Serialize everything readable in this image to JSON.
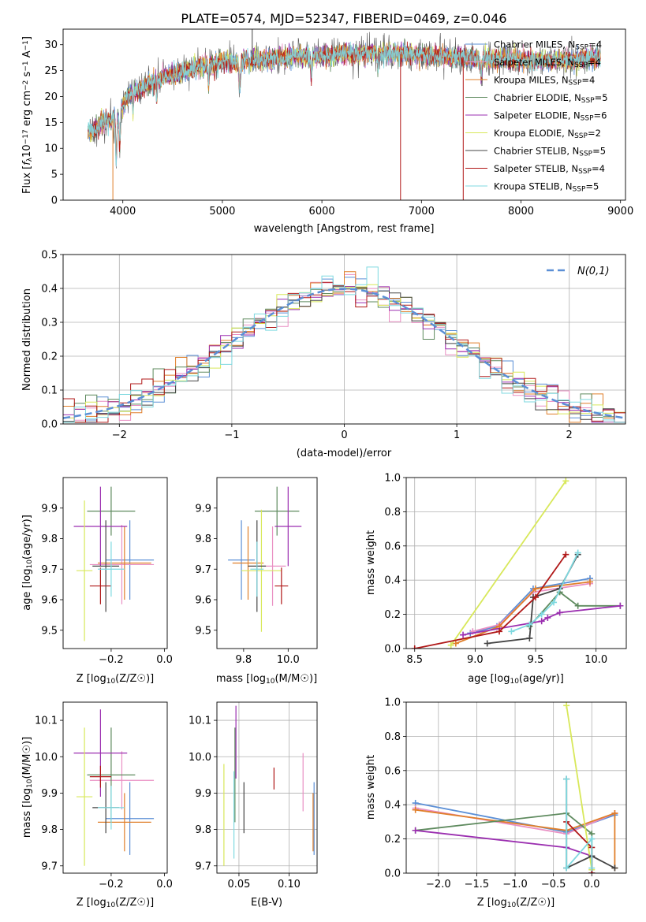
{
  "figure": {
    "title": "PLATE=0574, MJD=52347, FIBERID=0469, z=0.046"
  },
  "colors": {
    "palette": [
      "#5b8fd6",
      "#e98fc3",
      "#e07f2a",
      "#5e8a5e",
      "#9b2fb0",
      "#d8e85a",
      "#444444",
      "#b01818",
      "#7fd9e0"
    ],
    "normal": "#5b8fd6"
  },
  "chart_data": [
    {
      "id": "spectrum",
      "type": "line",
      "xlabel": "wavelength [Angstrom, rest frame]",
      "ylabel": "Flux [f_λ10^-17 erg cm^-2 s^-1 A^-1]",
      "xlim": [
        3400,
        9050
      ],
      "ylim": [
        0,
        33
      ],
      "xticks": [
        4000,
        5000,
        6000,
        7000,
        8000,
        9000
      ],
      "yticks": [
        0,
        5,
        10,
        15,
        20,
        25,
        30
      ],
      "grid": false,
      "legend_position": "top-right",
      "legend": [
        {
          "label": "Chabrier MILES, N_SSP=4"
        },
        {
          "label": "Salpeter MILES, N_SSP=4"
        },
        {
          "label": "Kroupa MILES, N_SSP=4"
        },
        {
          "label": "Chabrier ELODIE, N_SSP=5"
        },
        {
          "label": "Salpeter ELODIE, N_SSP=6"
        },
        {
          "label": "Kroupa ELODIE, N_SSP=2"
        },
        {
          "label": "Chabrier STELIB, N_SSP=5"
        },
        {
          "label": "Salpeter STELIB, N_SSP=4"
        },
        {
          "label": "Kroupa STELIB, N_SSP=5"
        }
      ],
      "data_range": [
        3650,
        8800
      ],
      "continuum": [
        [
          3650,
          13
        ],
        [
          3800,
          15
        ],
        [
          3950,
          16
        ],
        [
          4050,
          20
        ],
        [
          4300,
          23
        ],
        [
          4600,
          25
        ],
        [
          5000,
          26.5
        ],
        [
          5500,
          27.5
        ],
        [
          6000,
          28
        ],
        [
          6500,
          28.5
        ],
        [
          7000,
          28
        ],
        [
          7500,
          27.5
        ],
        [
          8000,
          27
        ],
        [
          8500,
          27
        ],
        [
          8800,
          27.5
        ]
      ]
    },
    {
      "id": "residuals",
      "type": "histogram",
      "xlabel": "(data-model)/error",
      "ylabel": "Normed distribution",
      "xlim": [
        -2.5,
        2.5
      ],
      "ylim": [
        0,
        0.5
      ],
      "xticks": [
        -2,
        -1,
        0,
        1,
        2
      ],
      "yticks": [
        0.0,
        0.1,
        0.2,
        0.3,
        0.4,
        0.5
      ],
      "grid": true,
      "legend_position": "top-right",
      "normal_label": "N(0,1)",
      "bin_width": 0.1,
      "n_series": 9
    },
    {
      "id": "age-vs-Z",
      "type": "errorbar",
      "xlabel": "Z [log10(Z/Z☉)]",
      "ylabel": "age [log10(age/yr)]",
      "xlim": [
        -0.38,
        0.01
      ],
      "ylim": [
        9.44,
        10.0
      ],
      "xticks": [
        -0.2,
        0.0
      ],
      "yticks": [
        9.5,
        9.6,
        9.7,
        9.8,
        9.9
      ],
      "points": [
        {
          "x": -0.13,
          "xerr": 0.09,
          "y": 9.73,
          "yerr": 0.13,
          "c": 0
        },
        {
          "x": -0.16,
          "xerr": 0.12,
          "y": 9.715,
          "yerr": 0.13,
          "c": 1
        },
        {
          "x": -0.15,
          "xerr": 0.1,
          "y": 9.72,
          "yerr": 0.12,
          "c": 2
        },
        {
          "x": -0.2,
          "xerr": 0.09,
          "y": 9.89,
          "yerr": 0.08,
          "c": 3
        },
        {
          "x": -0.24,
          "xerr": 0.1,
          "y": 9.84,
          "yerr": 0.13,
          "c": 4
        },
        {
          "x": -0.3,
          "xerr": 0.03,
          "y": 9.695,
          "yerr": 0.23,
          "c": 5
        },
        {
          "x": -0.22,
          "xerr": 0.05,
          "y": 9.71,
          "yerr": 0.15,
          "c": 6
        },
        {
          "x": -0.24,
          "xerr": 0.04,
          "y": 9.645,
          "yerr": 0.06,
          "c": 7
        },
        {
          "x": -0.2,
          "xerr": 0.05,
          "y": 9.7,
          "yerr": 0.09,
          "c": 8
        }
      ]
    },
    {
      "id": "age-vs-mass",
      "type": "errorbar",
      "xlabel": "mass [log10(M/M☉)]",
      "xlim": [
        9.68,
        10.13
      ],
      "ylim": [
        9.44,
        10.0
      ],
      "xticks": [
        9.8,
        10.0
      ],
      "yticks": [
        9.5,
        9.6,
        9.7,
        9.8,
        9.9
      ],
      "points": [
        {
          "x": 9.79,
          "xerr": 0.06,
          "y": 9.73,
          "yerr": 0.13,
          "c": 0
        },
        {
          "x": 9.93,
          "xerr": 0.06,
          "y": 9.71,
          "yerr": 0.13,
          "c": 1
        },
        {
          "x": 9.82,
          "xerr": 0.07,
          "y": 9.72,
          "yerr": 0.12,
          "c": 2
        },
        {
          "x": 9.95,
          "xerr": 0.1,
          "y": 9.89,
          "yerr": 0.08,
          "c": 3
        },
        {
          "x": 10.0,
          "xerr": 0.06,
          "y": 9.84,
          "yerr": 0.13,
          "c": 4
        },
        {
          "x": 9.88,
          "xerr": 0.09,
          "y": 9.695,
          "yerr": 0.2,
          "c": 5
        },
        {
          "x": 9.86,
          "xerr": 0.04,
          "y": 9.71,
          "yerr": 0.15,
          "c": 6
        },
        {
          "x": 9.97,
          "xerr": 0.03,
          "y": 9.645,
          "yerr": 0.06,
          "c": 7
        },
        {
          "x": 9.86,
          "xerr": 0.03,
          "y": 9.7,
          "yerr": 0.09,
          "c": 8
        }
      ]
    },
    {
      "id": "weight-vs-age",
      "type": "line",
      "xlabel": "age [log10(age/yr)]",
      "ylabel": "mass weight",
      "xlim": [
        8.43,
        10.25
      ],
      "ylim": [
        0,
        1.0
      ],
      "xticks": [
        8.5,
        9.0,
        9.5,
        10.0
      ],
      "yticks": [
        0.0,
        0.2,
        0.4,
        0.6,
        0.8,
        1.0
      ],
      "grid": true,
      "series": [
        {
          "c": 0,
          "x": [
            8.96,
            9.18,
            9.48,
            9.95
          ],
          "y": [
            0.09,
            0.13,
            0.35,
            0.41
          ]
        },
        {
          "c": 1,
          "x": [
            8.98,
            9.2,
            9.48,
            9.95
          ],
          "y": [
            0.1,
            0.14,
            0.33,
            0.38
          ]
        },
        {
          "c": 2,
          "x": [
            8.84,
            9.2,
            9.5,
            9.95
          ],
          "y": [
            0.03,
            0.13,
            0.35,
            0.39
          ]
        },
        {
          "c": 3,
          "x": [
            9.45,
            9.7,
            9.85,
            10.2
          ],
          "y": [
            0.13,
            0.33,
            0.25,
            0.25
          ]
        },
        {
          "c": 4,
          "x": [
            8.9,
            9.55,
            9.6,
            9.7,
            10.2
          ],
          "y": [
            0.08,
            0.16,
            0.18,
            0.21,
            0.25
          ]
        },
        {
          "c": 5,
          "x": [
            8.8,
            9.75
          ],
          "y": [
            0.02,
            0.98
          ]
        },
        {
          "c": 6,
          "x": [
            9.1,
            9.45,
            9.48,
            9.7,
            9.85
          ],
          "y": [
            0.03,
            0.06,
            0.3,
            0.35,
            0.55
          ]
        },
        {
          "c": 7,
          "x": [
            8.5,
            9.2,
            9.5,
            9.75
          ],
          "y": [
            0.0,
            0.1,
            0.3,
            0.55
          ]
        },
        {
          "c": 8,
          "x": [
            9.3,
            9.45,
            9.55,
            9.65,
            9.85
          ],
          "y": [
            0.1,
            0.14,
            0.2,
            0.27,
            0.56
          ]
        }
      ]
    },
    {
      "id": "mass-vs-Z",
      "type": "errorbar",
      "xlabel": "Z [log10(Z/Z☉)]",
      "ylabel": "mass [log10(M/M☉)]",
      "xlim": [
        -0.38,
        0.01
      ],
      "ylim": [
        9.68,
        10.15
      ],
      "xticks": [
        -0.2,
        0.0
      ],
      "yticks": [
        9.7,
        9.8,
        9.9,
        10.0,
        10.1
      ],
      "points": [
        {
          "x": -0.13,
          "xerr": 0.09,
          "y": 9.83,
          "yerr": 0.1,
          "c": 0
        },
        {
          "x": -0.16,
          "xerr": 0.12,
          "y": 9.935,
          "yerr": 0.08,
          "c": 1
        },
        {
          "x": -0.15,
          "xerr": 0.1,
          "y": 9.82,
          "yerr": 0.08,
          "c": 2
        },
        {
          "x": -0.2,
          "xerr": 0.09,
          "y": 9.95,
          "yerr": 0.13,
          "c": 3
        },
        {
          "x": -0.24,
          "xerr": 0.1,
          "y": 10.01,
          "yerr": 0.12,
          "c": 4
        },
        {
          "x": -0.3,
          "xerr": 0.03,
          "y": 9.89,
          "yerr": 0.19,
          "c": 5
        },
        {
          "x": -0.22,
          "xerr": 0.05,
          "y": 9.86,
          "yerr": 0.07,
          "c": 6
        },
        {
          "x": -0.24,
          "xerr": 0.04,
          "y": 9.945,
          "yerr": 0.03,
          "c": 7
        },
        {
          "x": -0.2,
          "xerr": 0.05,
          "y": 9.86,
          "yerr": 0.06,
          "c": 8
        }
      ]
    },
    {
      "id": "mass-vs-ebv",
      "type": "errorbar",
      "xlabel": "E(B-V)",
      "xlim": [
        0.028,
        0.128
      ],
      "ylim": [
        9.68,
        10.15
      ],
      "xticks": [
        0.05,
        0.1
      ],
      "yticks": [
        9.7,
        9.8,
        9.9,
        10.0,
        10.1
      ],
      "grid": true,
      "points": [
        {
          "x": 0.125,
          "xerr": 0.0,
          "y": 9.83,
          "yerr": 0.1,
          "c": 0
        },
        {
          "x": 0.114,
          "xerr": 0.0,
          "y": 9.93,
          "yerr": 0.08,
          "c": 1
        },
        {
          "x": 0.124,
          "xerr": 0.0,
          "y": 9.82,
          "yerr": 0.08,
          "c": 2
        },
        {
          "x": 0.046,
          "xerr": 0.0,
          "y": 9.95,
          "yerr": 0.13,
          "c": 3
        },
        {
          "x": 0.047,
          "xerr": 0.0,
          "y": 10.04,
          "yerr": 0.1,
          "c": 4
        },
        {
          "x": 0.035,
          "xerr": 0.0,
          "y": 9.84,
          "yerr": 0.14,
          "c": 5
        },
        {
          "x": 0.055,
          "xerr": 0.0,
          "y": 9.86,
          "yerr": 0.07,
          "c": 6
        },
        {
          "x": 0.085,
          "xerr": 0.0,
          "y": 9.94,
          "yerr": 0.03,
          "c": 7
        },
        {
          "x": 0.045,
          "xerr": 0.0,
          "y": 9.84,
          "yerr": 0.12,
          "c": 8
        }
      ]
    },
    {
      "id": "weight-vs-Z",
      "type": "line",
      "xlabel": "Z [log10(Z/Z☉)]",
      "ylabel": "mass weight",
      "xlim": [
        -2.42,
        0.45
      ],
      "ylim": [
        0,
        1.0
      ],
      "xticks": [
        -2.0,
        -1.5,
        -1.0,
        -0.5,
        0.0
      ],
      "yticks": [
        0.0,
        0.2,
        0.4,
        0.6,
        0.8,
        1.0
      ],
      "grid": true,
      "series": [
        {
          "c": 0,
          "x": [
            -2.3,
            -0.33,
            0.3
          ],
          "y": [
            0.41,
            0.24,
            0.34
          ]
        },
        {
          "c": 1,
          "x": [
            -2.3,
            -0.33,
            0.3
          ],
          "y": [
            0.38,
            0.23,
            0.35
          ]
        },
        {
          "c": 2,
          "x": [
            -2.3,
            -0.33,
            0.3,
            0.3
          ],
          "y": [
            0.37,
            0.25,
            0.35,
            0.03
          ]
        },
        {
          "c": 3,
          "x": [
            -2.3,
            -0.33,
            0.0,
            0.0
          ],
          "y": [
            0.25,
            0.35,
            0.23,
            0.0
          ]
        },
        {
          "c": 4,
          "x": [
            -2.3,
            -0.33,
            0.0,
            0.0
          ],
          "y": [
            0.25,
            0.15,
            0.1,
            0.0
          ]
        },
        {
          "c": 5,
          "x": [
            -0.33,
            0.0
          ],
          "y": [
            0.98,
            0.02
          ]
        },
        {
          "c": 6,
          "x": [
            -0.33,
            -0.33,
            0.0,
            0.3
          ],
          "y": [
            0.55,
            0.03,
            0.1,
            0.03
          ]
        },
        {
          "c": 7,
          "x": [
            -0.33,
            0.0,
            0.0
          ],
          "y": [
            0.3,
            0.15,
            0.0
          ]
        },
        {
          "c": 8,
          "x": [
            -0.33,
            -0.33,
            0.0,
            0.0
          ],
          "y": [
            0.55,
            0.03,
            0.2,
            0.03
          ]
        }
      ]
    }
  ]
}
